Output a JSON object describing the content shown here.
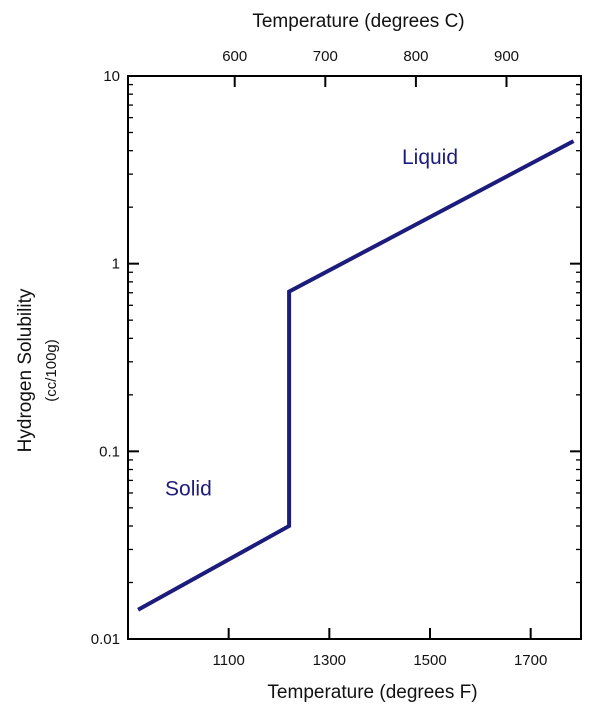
{
  "chart_data": {
    "type": "line",
    "title": "",
    "xlabel": "Temperature (degrees F)",
    "x2label": "Temperature (degrees C)",
    "ylabel": "Hydrogen Solubility",
    "ylabel_units": "(cc/100g)",
    "y_scale": "log",
    "xlim": [
      900,
      1800
    ],
    "ylim": [
      0.01,
      10
    ],
    "x_ticks": [
      1100,
      1300,
      1500,
      1700
    ],
    "x_tick_labels": [
      "1100",
      "1300",
      "1500",
      "1700"
    ],
    "x2_ticks": [
      600,
      700,
      800,
      900
    ],
    "x2_tick_labels": [
      "600",
      "700",
      "800",
      "900"
    ],
    "y_ticks": [
      0.01,
      0.1,
      1,
      10
    ],
    "y_tick_labels": [
      "0.01",
      "0.1",
      "1",
      "10"
    ],
    "grid": false,
    "line_color": "#1c1c7c",
    "series": [
      {
        "points": [
          {
            "x": 920,
            "y": 0.0143
          },
          {
            "x": 1220,
            "y": 0.04
          },
          {
            "x": 1220,
            "y": 0.71
          },
          {
            "x": 1785,
            "y": 4.5
          }
        ]
      }
    ],
    "annotations": [
      {
        "text": "Solid",
        "x": 1020,
        "y": 0.058
      },
      {
        "text": "Liquid",
        "x": 1500,
        "y": 3.4
      }
    ]
  }
}
